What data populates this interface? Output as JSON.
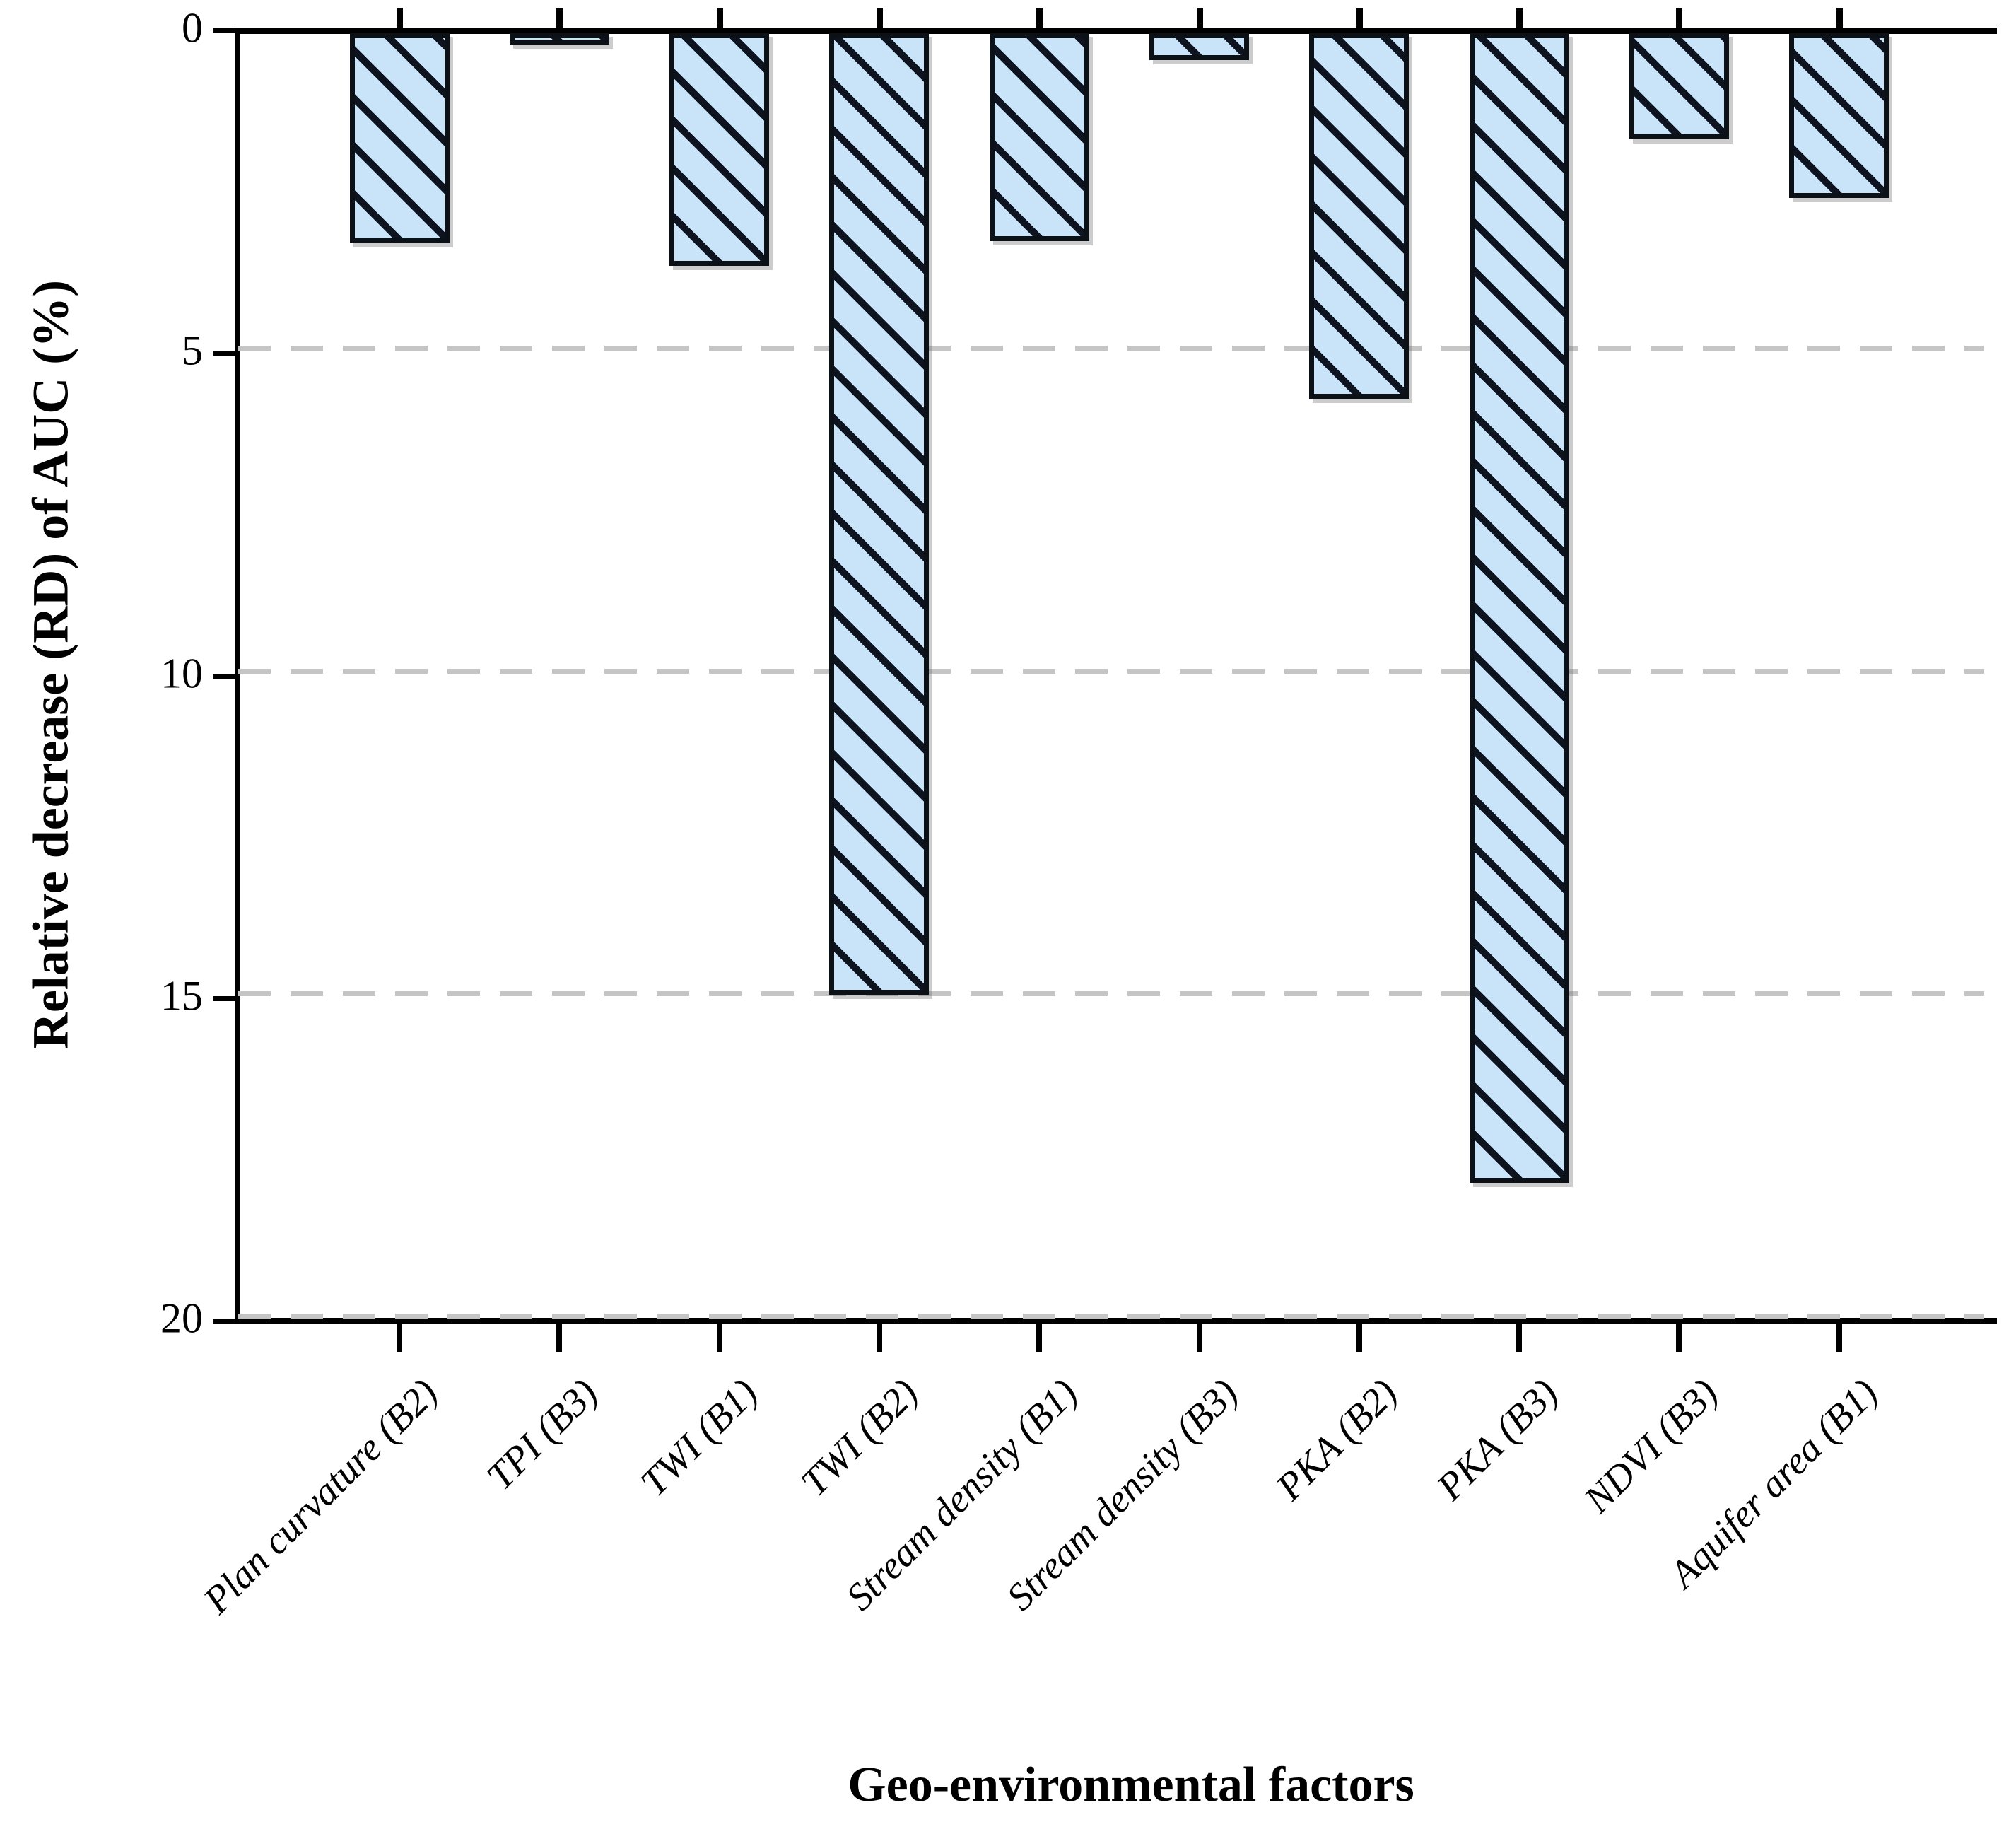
{
  "chart_data": {
    "type": "bar",
    "orientation": "vertical-downward",
    "title": "",
    "xlabel": "Geo-environmental factors",
    "ylabel": "Relative decrease (RD) of AUC  (%)",
    "categories": [
      "Plan curvature (B2)",
      "TPI (B3)",
      "TWI (B1)",
      "TWI (B2)",
      "Stream density (B1)",
      "Stream density (B3)",
      "PKA (B2)",
      "PKA (B3)",
      "NDVI (B3)",
      "Aquifer area (B1)"
    ],
    "values": [
      3.3,
      0.22,
      3.65,
      14.95,
      3.27,
      0.46,
      5.71,
      17.86,
      1.69,
      2.6
    ],
    "ylim": [
      0,
      20
    ],
    "yticks": [
      0,
      5,
      10,
      15,
      20
    ],
    "y_axis_inverted_downward": true,
    "grid": "dashed horizontal at 5,10,15,20",
    "legend": "none",
    "bar_fill_color": "#c9e4f8",
    "bar_hatch": "diagonal / lines",
    "bar_hatch_color": "#0d1420",
    "bar_border_color": "#0c1118",
    "gridline_color": "#c5c5c5",
    "axis_color": "#000000",
    "background_color": "#ffffff"
  }
}
